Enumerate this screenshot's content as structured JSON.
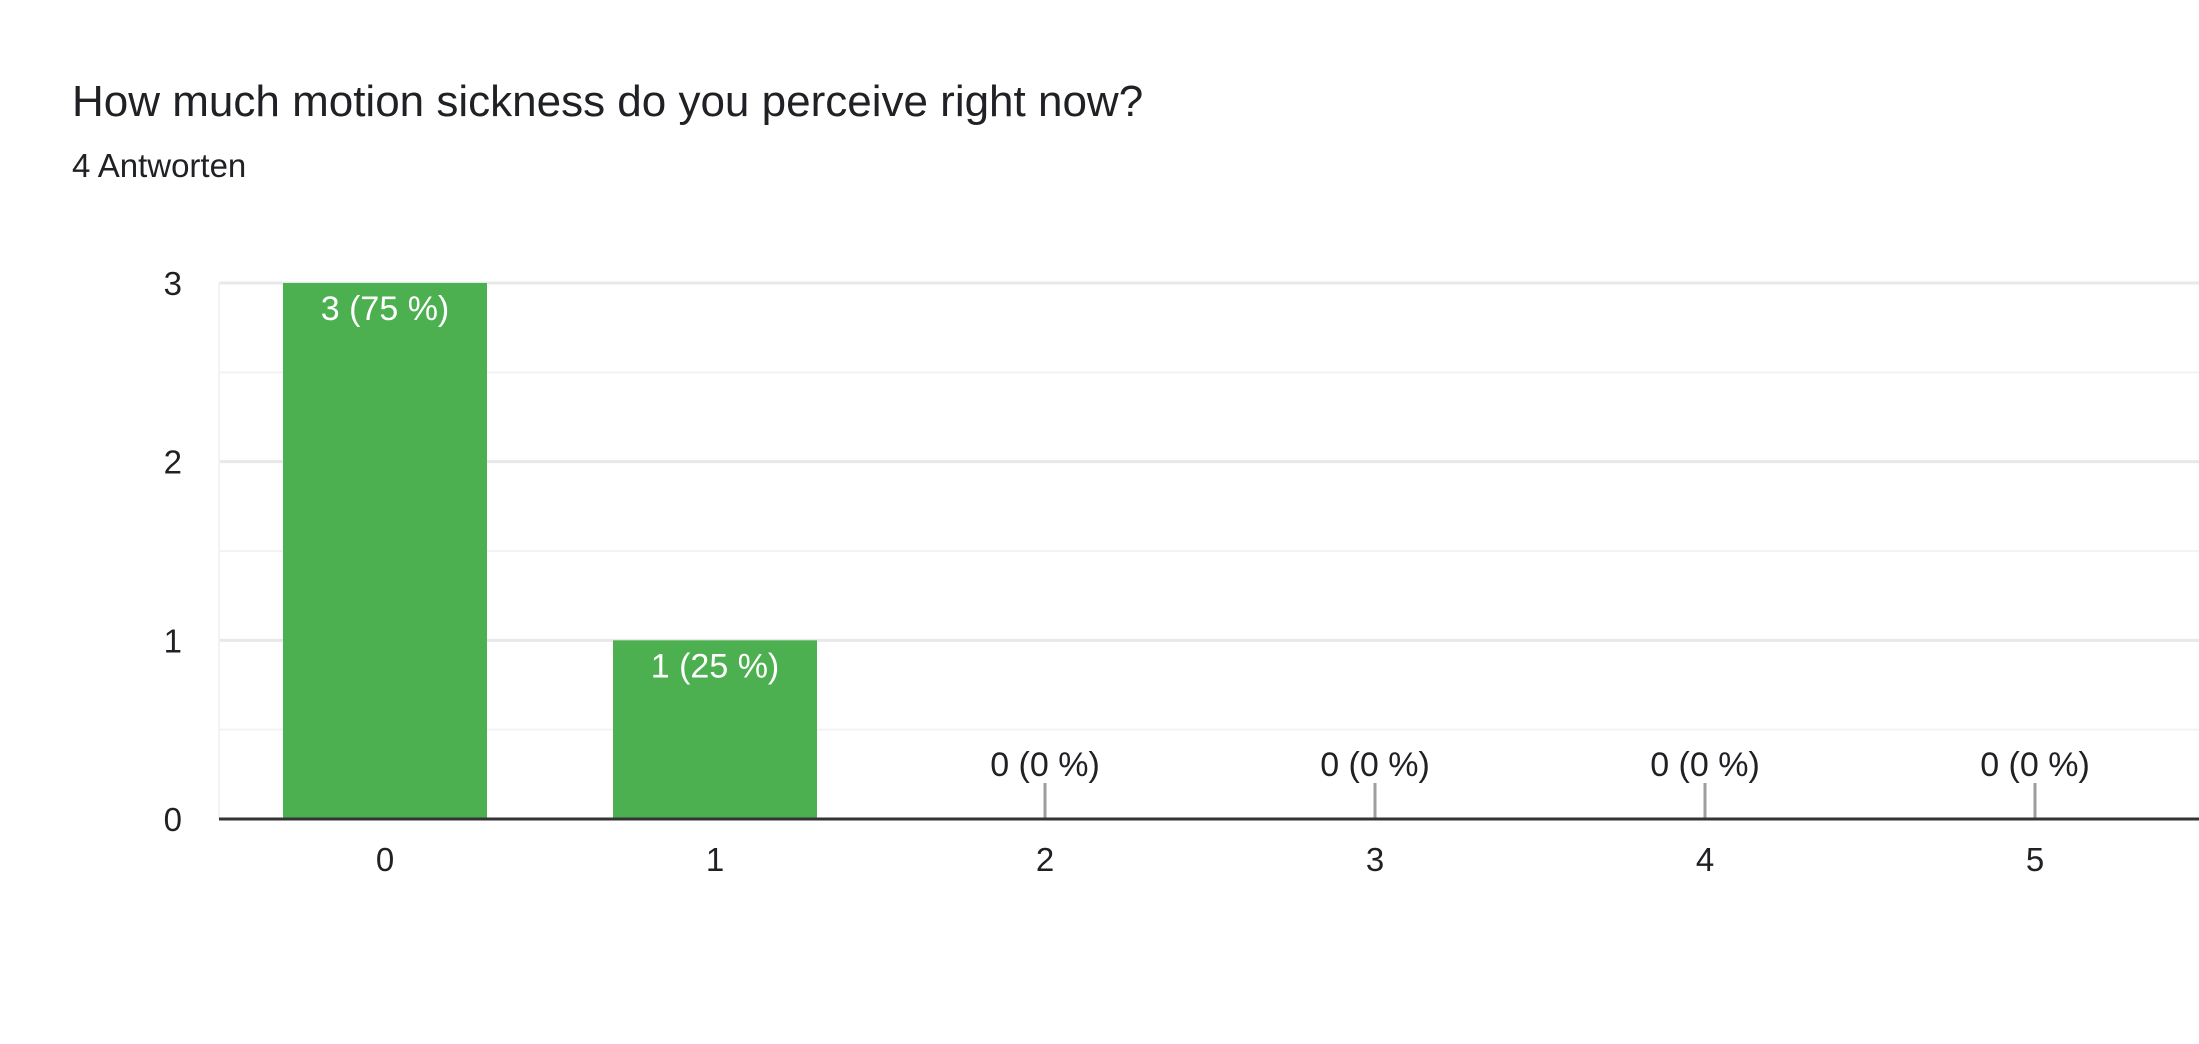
{
  "question": {
    "title": "How much motion sickness do you perceive right now?",
    "responses": "4 Antworten"
  },
  "colors": {
    "bar": "#4caf50",
    "grid": "#e8e8e8",
    "minor_grid": "#f3f3f3",
    "axis": "#333333",
    "label_inside": "#ffffff",
    "label_outside": "#202124"
  },
  "chart_data": {
    "type": "bar",
    "categories": [
      "0",
      "1",
      "2",
      "3",
      "4",
      "5"
    ],
    "values": [
      3,
      1,
      0,
      0,
      0,
      0
    ],
    "data_labels": [
      "3 (75 %)",
      "1 (25 %)",
      "0 (0 %)",
      "0 (0 %)",
      "0 (0 %)",
      "0 (0 %)"
    ],
    "y_ticks": [
      "0",
      "1",
      "2",
      "3"
    ],
    "ylim": [
      0,
      3
    ],
    "grid": true,
    "legend": "none"
  }
}
